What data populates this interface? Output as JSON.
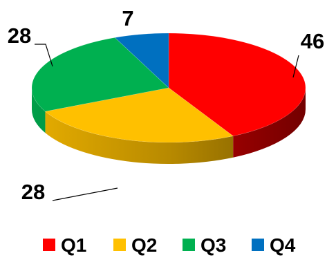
{
  "chart_data": {
    "type": "pie",
    "style": "3d",
    "categories": [
      "Q1",
      "Q2",
      "Q3",
      "Q4"
    ],
    "values": [
      46,
      28,
      28,
      7
    ],
    "colors": [
      "#ff0000",
      "#ffc000",
      "#00b050",
      "#0070c0"
    ],
    "data_labels": [
      "46",
      "28",
      "28",
      "7"
    ],
    "legend": {
      "placement": "bottom",
      "entries": [
        "Q1",
        "Q2",
        "Q3",
        "Q4"
      ]
    }
  }
}
